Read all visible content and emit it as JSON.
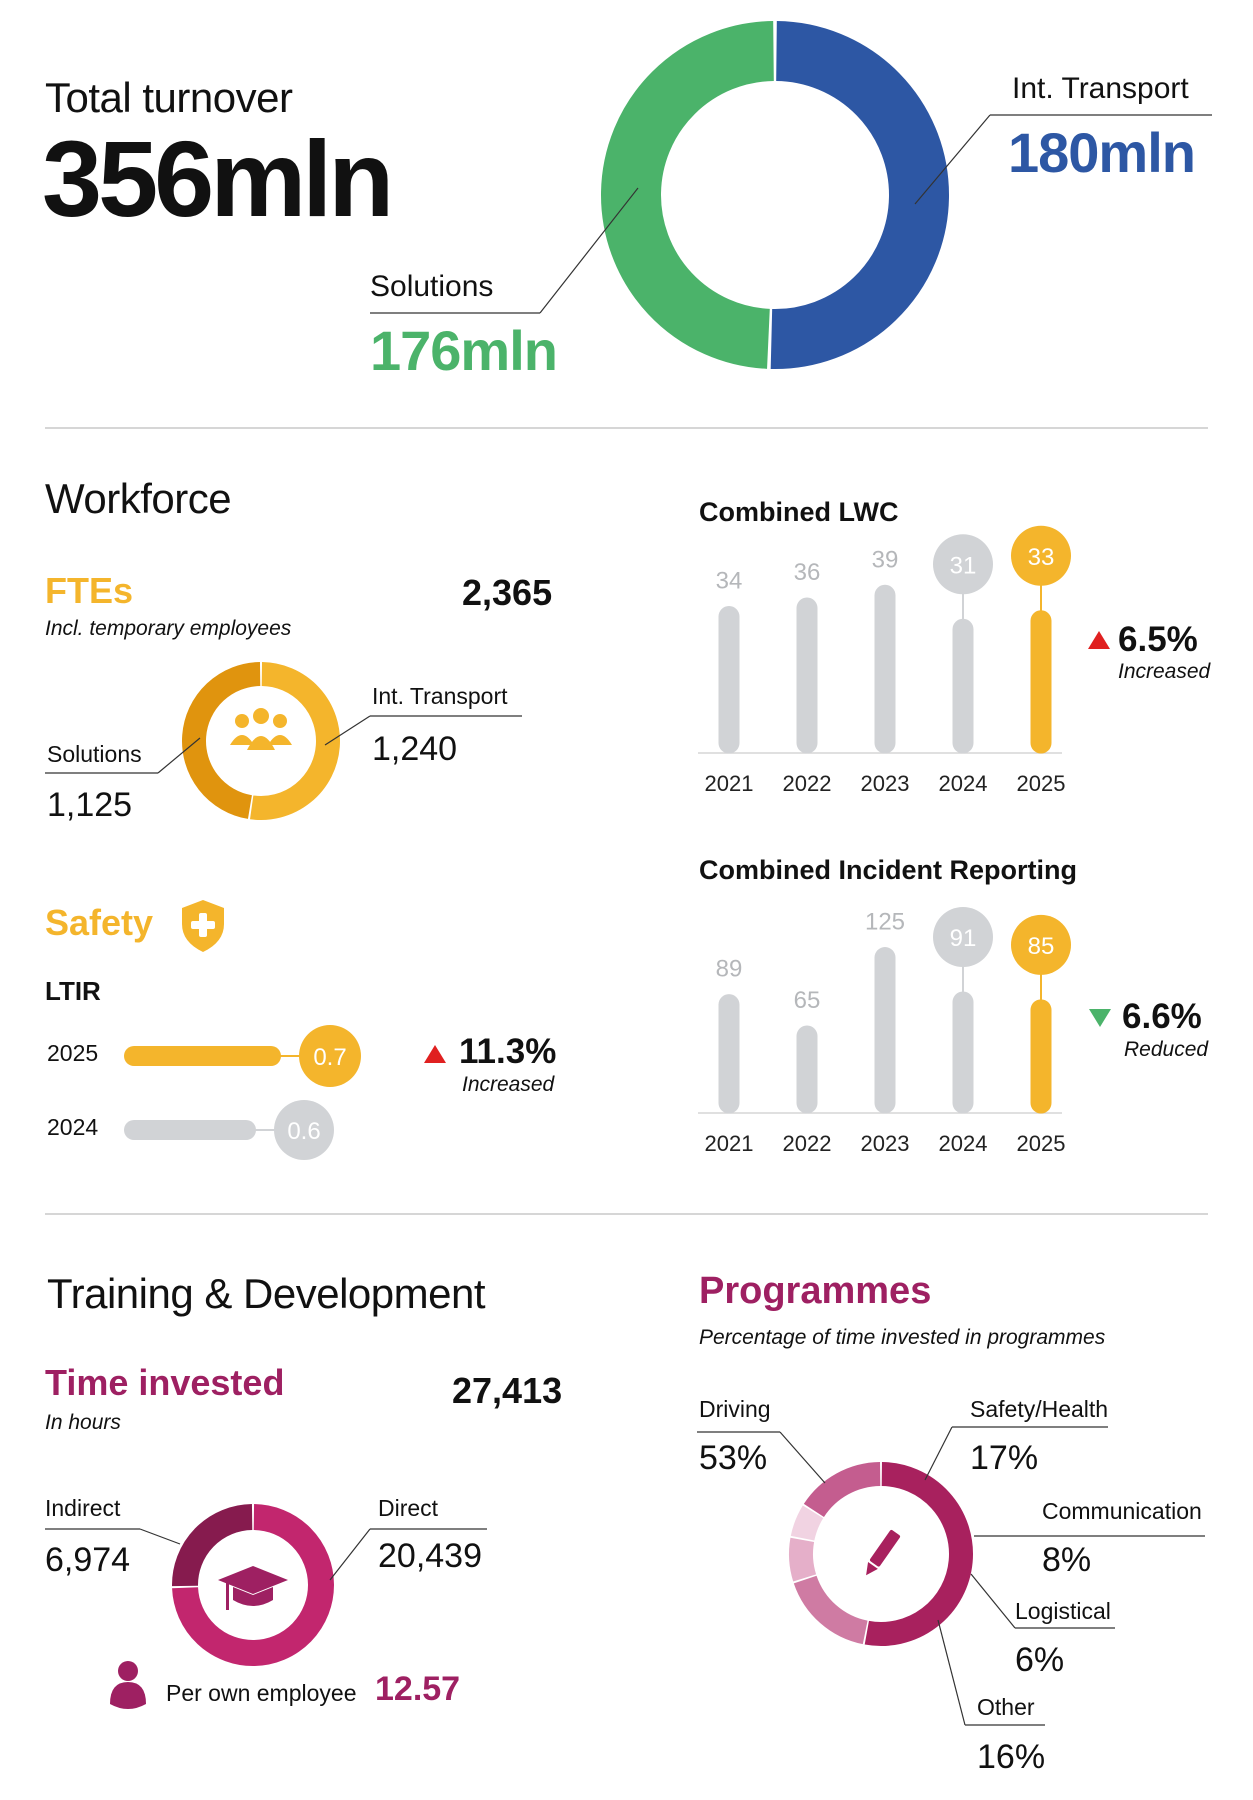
{
  "colors": {
    "blue": "#2d57a4",
    "green": "#4bb36a",
    "amber": "#f4b52c",
    "amber_dark": "#e0940e",
    "grey": "#d1d3d6",
    "magenta": "#9e2062",
    "red": "#e02020",
    "down_green": "#4bb36a"
  },
  "turnover": {
    "title": "Total turnover",
    "total": "356mln",
    "int_transport_label": "Int. Transport",
    "int_transport_value": "180mln",
    "solutions_label": "Solutions",
    "solutions_value": "176mln"
  },
  "workforce": {
    "title": "Workforce",
    "ftes_title": "FTEs",
    "ftes_subtitle": "Incl. temporary employees",
    "ftes_total": "2,365",
    "int_transport_label": "Int. Transport",
    "int_transport_value": "1,240",
    "solutions_label": "Solutions",
    "solutions_value": "1,125",
    "people_icon": "people-icon"
  },
  "safety": {
    "title": "Safety",
    "icon": "shield-plus-icon",
    "ltir_label": "LTIR",
    "rows": [
      {
        "year": "2025",
        "value": "0.7"
      },
      {
        "year": "2024",
        "value": "0.6"
      }
    ],
    "change": "11.3%",
    "change_note": "Increased"
  },
  "lwc": {
    "title": "Combined LWC",
    "change": "6.5%",
    "change_note": "Increased"
  },
  "incident": {
    "title": "Combined Incident Reporting",
    "change": "6.6%",
    "change_note": "Reduced"
  },
  "training": {
    "title": "Training & Development",
    "time_title": "Time invested",
    "time_subtitle": "In hours",
    "time_total": "27,413",
    "indirect_label": "Indirect",
    "indirect_value": "6,974",
    "direct_label": "Direct",
    "direct_value": "20,439",
    "per_employee_label": "Per own employee",
    "per_employee_value": "12.57",
    "icon": "graduation-cap-icon"
  },
  "programmes": {
    "title": "Programmes",
    "subtitle": "Percentage of time invested in programmes",
    "icon": "pencil-icon",
    "items": [
      {
        "label": "Driving",
        "value": "53%"
      },
      {
        "label": "Safety/Health",
        "value": "17%"
      },
      {
        "label": "Communication",
        "value": "8%"
      },
      {
        "label": "Logistical",
        "value": "6%"
      },
      {
        "label": "Other",
        "value": "16%"
      }
    ]
  },
  "chart_data": [
    {
      "type": "pie",
      "title": "Total turnover",
      "categories": [
        "Int. Transport",
        "Solutions"
      ],
      "values": [
        180,
        176
      ],
      "unit": "mln",
      "colors": [
        "#2d57a4",
        "#4bb36a"
      ]
    },
    {
      "type": "pie",
      "title": "FTEs",
      "categories": [
        "Int. Transport",
        "Solutions"
      ],
      "values": [
        1240,
        1125
      ],
      "colors": [
        "#f4b52c",
        "#e0940e"
      ]
    },
    {
      "type": "bar",
      "title": "LTIR",
      "categories": [
        "2025",
        "2024"
      ],
      "values": [
        0.7,
        0.6
      ],
      "colors": [
        "#f4b52c",
        "#d1d3d6"
      ]
    },
    {
      "type": "bar",
      "title": "Combined LWC",
      "categories": [
        "2021",
        "2022",
        "2023",
        "2024",
        "2025"
      ],
      "values": [
        34,
        36,
        39,
        31,
        33
      ],
      "ylim": [
        0,
        40
      ]
    },
    {
      "type": "bar",
      "title": "Combined Incident Reporting",
      "categories": [
        "2021",
        "2022",
        "2023",
        "2024",
        "2025"
      ],
      "values": [
        89,
        65,
        125,
        91,
        85
      ],
      "ylim": [
        0,
        130
      ]
    },
    {
      "type": "pie",
      "title": "Time invested",
      "categories": [
        "Direct",
        "Indirect"
      ],
      "values": [
        20439,
        6974
      ],
      "colors": [
        "#c2266e",
        "#861b4e"
      ]
    },
    {
      "type": "pie",
      "title": "Programmes",
      "categories": [
        "Driving",
        "Safety/Health",
        "Communication",
        "Logistical",
        "Other"
      ],
      "values": [
        53,
        17,
        8,
        6,
        16
      ],
      "colors": [
        "#a8215e",
        "#cf7ba3",
        "#e5afc9",
        "#f1d3e2",
        "#c45d8f"
      ]
    }
  ]
}
